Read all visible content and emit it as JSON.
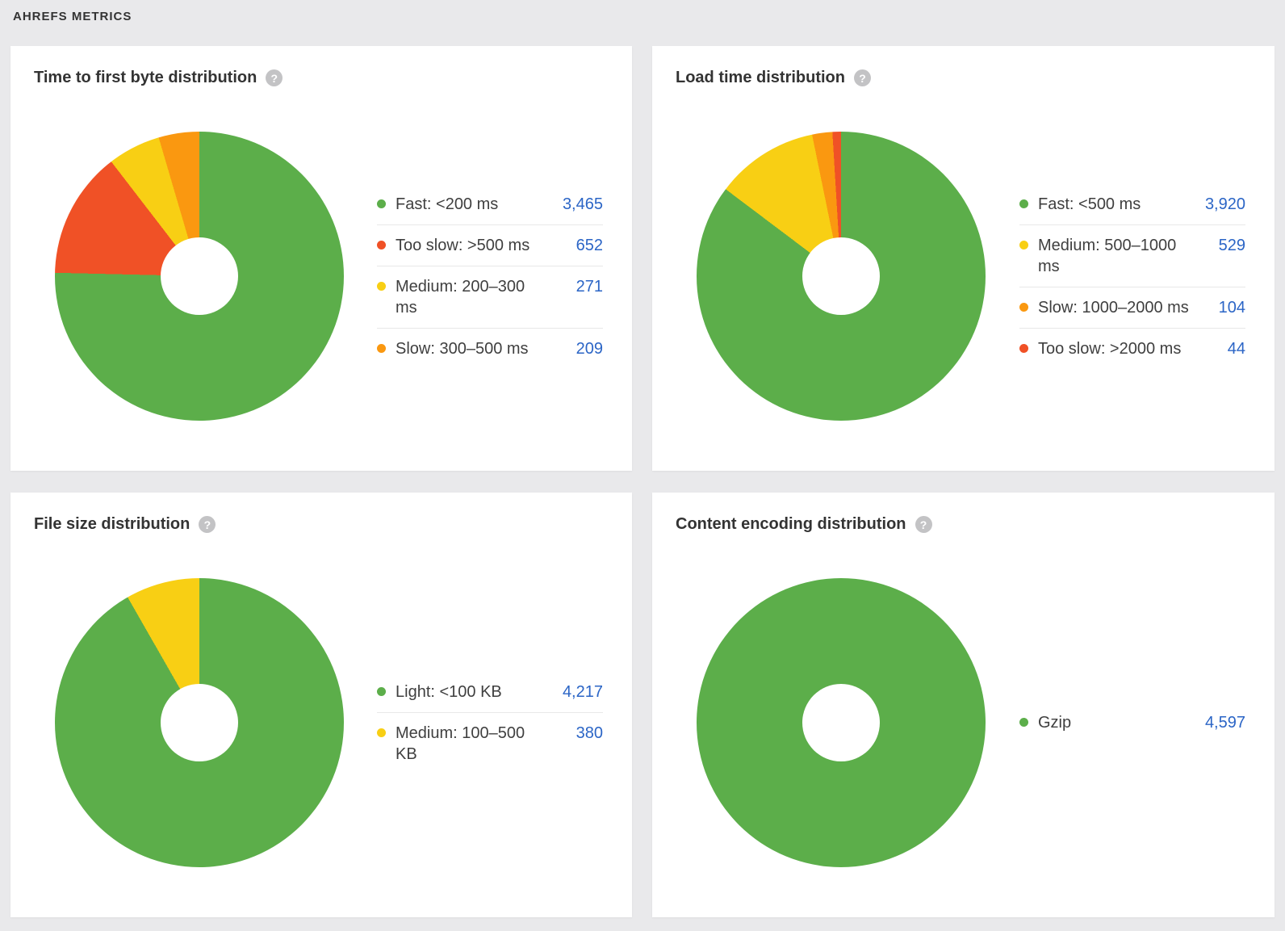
{
  "page": {
    "section_title": "AHREFS METRICS",
    "background": "#e9e9eb",
    "card_background": "#ffffff"
  },
  "colors": {
    "green": "#5cae4a",
    "red": "#f05126",
    "yellow": "#f8cf14",
    "orange": "#fa9810",
    "value_link_blue": "#2b65c6",
    "title_text": "#333333",
    "label_text": "#3f3f3f"
  },
  "help_icon": {
    "glyph": "?"
  },
  "chart_data": [
    {
      "type": "pie",
      "title": "Time to first byte distribution",
      "legend_position": "right",
      "donut_hole_ratio": 0.27,
      "start_angle_deg": 0,
      "direction": "clockwise",
      "total": 4597,
      "segments": [
        {
          "label": "Fast: <200 ms",
          "value": 3465,
          "display": "3,465",
          "color": "#5cae4a"
        },
        {
          "label": "Too slow: >500 ms",
          "value": 652,
          "display": "652",
          "color": "#f05126"
        },
        {
          "label": "Medium: 200–300 ms",
          "value": 271,
          "display": "271",
          "color": "#f8cf14"
        },
        {
          "label": "Slow: 300–500 ms",
          "value": 209,
          "display": "209",
          "color": "#fa9810"
        }
      ]
    },
    {
      "type": "pie",
      "title": "Load time distribution",
      "legend_position": "right",
      "donut_hole_ratio": 0.27,
      "start_angle_deg": 0,
      "direction": "clockwise",
      "total": 4597,
      "segments": [
        {
          "label": "Fast: <500 ms",
          "value": 3920,
          "display": "3,920",
          "color": "#5cae4a"
        },
        {
          "label": "Medium: 500–1000 ms",
          "value": 529,
          "display": "529",
          "color": "#f8cf14"
        },
        {
          "label": "Slow: 1000–2000 ms",
          "value": 104,
          "display": "104",
          "color": "#fa9810"
        },
        {
          "label": "Too slow: >2000 ms",
          "value": 44,
          "display": "44",
          "color": "#f05126"
        }
      ]
    },
    {
      "type": "pie",
      "title": "File size distribution",
      "legend_position": "right",
      "donut_hole_ratio": 0.27,
      "start_angle_deg": 0,
      "direction": "clockwise",
      "total": 4597,
      "segments": [
        {
          "label": "Light: <100 KB",
          "value": 4217,
          "display": "4,217",
          "color": "#5cae4a"
        },
        {
          "label": "Medium: 100–500 KB",
          "value": 380,
          "display": "380",
          "color": "#f8cf14"
        }
      ]
    },
    {
      "type": "pie",
      "title": "Content encoding distribution",
      "legend_position": "right",
      "donut_hole_ratio": 0.27,
      "start_angle_deg": 0,
      "direction": "clockwise",
      "total": 4597,
      "segments": [
        {
          "label": "Gzip",
          "value": 4597,
          "display": "4,597",
          "color": "#5cae4a"
        }
      ]
    }
  ]
}
